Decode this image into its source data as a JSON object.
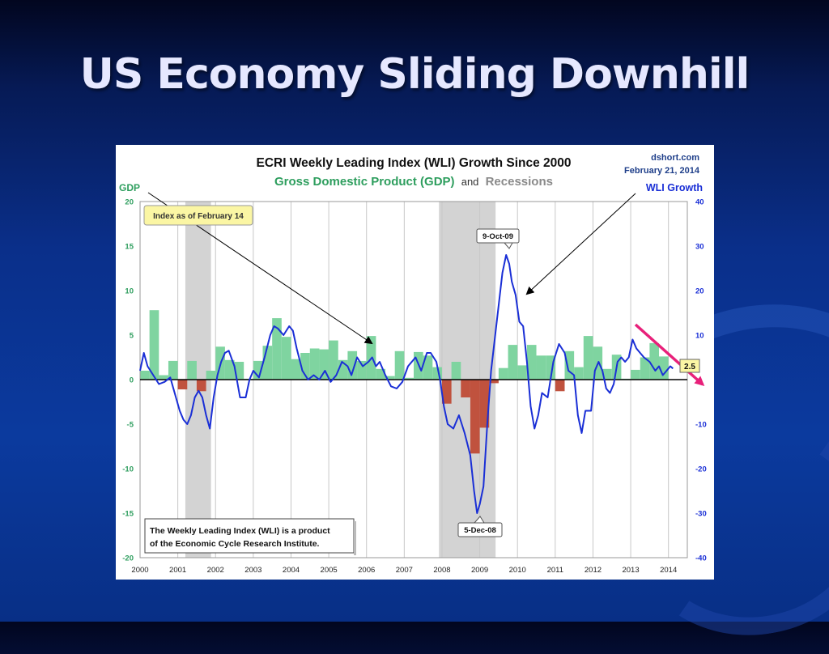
{
  "slide": {
    "title": "US Economy Sliding Downhill"
  },
  "chart_data": {
    "type": "bar",
    "title": "ECRI Weekly Leading Index (WLI) Growth Since 2000",
    "subtitle_gdp": "Gross Domestic Product (GDP)",
    "subtitle_and": "and",
    "subtitle_rec": "Recessions",
    "source": "dshort.com",
    "date": "February 21, 2014",
    "colors": {
      "gdp_pos": "#7fd4a0",
      "gdp_neg": "#c0523e",
      "wli": "#1a2fd6",
      "recession": "#d3d3d3",
      "gdp_label": "#2e9e5e",
      "wli_label": "#1a2fd6",
      "arrow": "#e8207a"
    },
    "x_years": [
      2000,
      2001,
      2002,
      2003,
      2004,
      2005,
      2006,
      2007,
      2008,
      2009,
      2010,
      2011,
      2012,
      2013,
      2014
    ],
    "left_axis": {
      "label": "GDP",
      "ylim": [
        -20,
        20
      ],
      "ticks": [
        20,
        15,
        10,
        5,
        0,
        -5,
        -10,
        -15,
        -20
      ]
    },
    "right_axis": {
      "label": "WLI Growth",
      "ylim": [
        -40,
        40
      ],
      "ticks": [
        40,
        30,
        20,
        10,
        -10,
        -20,
        -30,
        -40
      ]
    },
    "recessions": [
      {
        "start": 2001.2,
        "end": 2001.88
      },
      {
        "start": 2007.92,
        "end": 2009.42
      }
    ],
    "gdp": [
      {
        "start": 2000.0,
        "value": 1.0
      },
      {
        "start": 2000.25,
        "value": 7.8
      },
      {
        "start": 2000.5,
        "value": 0.5
      },
      {
        "start": 2000.75,
        "value": 2.1
      },
      {
        "start": 2001.0,
        "value": -1.1
      },
      {
        "start": 2001.25,
        "value": 2.1
      },
      {
        "start": 2001.5,
        "value": -1.3
      },
      {
        "start": 2001.75,
        "value": 1.0
      },
      {
        "start": 2002.0,
        "value": 3.7
      },
      {
        "start": 2002.25,
        "value": 2.2
      },
      {
        "start": 2002.5,
        "value": 2.0
      },
      {
        "start": 2002.75,
        "value": 0.1
      },
      {
        "start": 2003.0,
        "value": 2.1
      },
      {
        "start": 2003.25,
        "value": 3.8
      },
      {
        "start": 2003.5,
        "value": 6.9
      },
      {
        "start": 2003.75,
        "value": 4.8
      },
      {
        "start": 2004.0,
        "value": 2.3
      },
      {
        "start": 2004.25,
        "value": 3.0
      },
      {
        "start": 2004.5,
        "value": 3.5
      },
      {
        "start": 2004.75,
        "value": 3.4
      },
      {
        "start": 2005.0,
        "value": 4.4
      },
      {
        "start": 2005.25,
        "value": 2.2
      },
      {
        "start": 2005.5,
        "value": 3.2
      },
      {
        "start": 2005.75,
        "value": 2.1
      },
      {
        "start": 2006.0,
        "value": 4.9
      },
      {
        "start": 2006.25,
        "value": 1.2
      },
      {
        "start": 2006.5,
        "value": 0.4
      },
      {
        "start": 2006.75,
        "value": 3.2
      },
      {
        "start": 2007.0,
        "value": 0.2
      },
      {
        "start": 2007.25,
        "value": 3.1
      },
      {
        "start": 2007.5,
        "value": 2.7
      },
      {
        "start": 2007.75,
        "value": 1.4
      },
      {
        "start": 2008.0,
        "value": -2.7
      },
      {
        "start": 2008.25,
        "value": 2.0
      },
      {
        "start": 2008.5,
        "value": -2.0
      },
      {
        "start": 2008.75,
        "value": -8.3
      },
      {
        "start": 2009.0,
        "value": -5.4
      },
      {
        "start": 2009.25,
        "value": -0.4
      },
      {
        "start": 2009.5,
        "value": 1.3
      },
      {
        "start": 2009.75,
        "value": 3.9
      },
      {
        "start": 2010.0,
        "value": 1.6
      },
      {
        "start": 2010.25,
        "value": 3.9
      },
      {
        "start": 2010.5,
        "value": 2.7
      },
      {
        "start": 2010.75,
        "value": 2.7
      },
      {
        "start": 2011.0,
        "value": -1.3
      },
      {
        "start": 2011.25,
        "value": 3.2
      },
      {
        "start": 2011.5,
        "value": 1.4
      },
      {
        "start": 2011.75,
        "value": 4.9
      },
      {
        "start": 2012.0,
        "value": 3.7
      },
      {
        "start": 2012.25,
        "value": 1.2
      },
      {
        "start": 2012.5,
        "value": 2.8
      },
      {
        "start": 2012.75,
        "value": 0.1
      },
      {
        "start": 2013.0,
        "value": 1.1
      },
      {
        "start": 2013.25,
        "value": 2.5
      },
      {
        "start": 2013.5,
        "value": 4.1
      },
      {
        "start": 2013.75,
        "value": 2.6
      }
    ],
    "wli": {
      "x": [
        2000.0,
        2000.1,
        2000.2,
        2000.35,
        2000.5,
        2000.65,
        2000.8,
        2000.95,
        2001.05,
        2001.15,
        2001.25,
        2001.35,
        2001.45,
        2001.55,
        2001.65,
        2001.75,
        2001.85,
        2001.95,
        2002.05,
        2002.15,
        2002.25,
        2002.35,
        2002.5,
        2002.65,
        2002.8,
        2002.9,
        2003.0,
        2003.15,
        2003.3,
        2003.45,
        2003.55,
        2003.65,
        2003.8,
        2003.95,
        2004.05,
        2004.15,
        2004.3,
        2004.45,
        2004.6,
        2004.75,
        2004.9,
        2005.05,
        2005.2,
        2005.35,
        2005.5,
        2005.6,
        2005.75,
        2005.9,
        2006.05,
        2006.15,
        2006.25,
        2006.35,
        2006.5,
        2006.65,
        2006.8,
        2006.95,
        2007.1,
        2007.3,
        2007.45,
        2007.6,
        2007.7,
        2007.85,
        2007.95,
        2008.05,
        2008.15,
        2008.3,
        2008.45,
        2008.6,
        2008.75,
        2008.85,
        2008.93,
        2009.0,
        2009.1,
        2009.2,
        2009.3,
        2009.45,
        2009.6,
        2009.7,
        2009.78,
        2009.85,
        2009.95,
        2010.05,
        2010.15,
        2010.25,
        2010.35,
        2010.45,
        2010.55,
        2010.65,
        2010.8,
        2010.95,
        2011.1,
        2011.25,
        2011.35,
        2011.5,
        2011.6,
        2011.7,
        2011.8,
        2011.95,
        2012.05,
        2012.15,
        2012.25,
        2012.35,
        2012.45,
        2012.55,
        2012.65,
        2012.75,
        2012.85,
        2012.95,
        2013.05,
        2013.15,
        2013.25,
        2013.35,
        2013.5,
        2013.65,
        2013.75,
        2013.85,
        2013.95,
        2014.05,
        2014.12
      ],
      "y": [
        2.0,
        6.0,
        3.0,
        1.0,
        -1.0,
        -0.5,
        0.5,
        -4.0,
        -7.0,
        -9.0,
        -10.0,
        -8.0,
        -4.0,
        -2.5,
        -4.0,
        -8.0,
        -11.0,
        -4.0,
        1.0,
        4.0,
        6.0,
        6.5,
        3.0,
        -4.0,
        -4.0,
        0.0,
        2.0,
        0.5,
        5.0,
        10.0,
        12.0,
        11.5,
        10.0,
        12.0,
        11.0,
        7.0,
        2.0,
        0.0,
        1.0,
        0.0,
        2.0,
        -0.5,
        1.0,
        4.0,
        3.0,
        1.0,
        5.0,
        3.0,
        4.0,
        5.0,
        3.0,
        4.0,
        1.0,
        -1.5,
        -2.0,
        -0.5,
        3.0,
        5.0,
        2.0,
        6.0,
        6.0,
        4.0,
        0.0,
        -6.0,
        -10.0,
        -11.0,
        -8.0,
        -12.0,
        -17.0,
        -25.0,
        -30.0,
        -28.0,
        -24.0,
        -10.0,
        2.0,
        13.0,
        24.0,
        28.0,
        26.0,
        22.0,
        19.0,
        13.0,
        12.0,
        4.0,
        -6.0,
        -11.0,
        -8.0,
        -3.0,
        -4.0,
        4.0,
        8.0,
        6.0,
        2.0,
        1.0,
        -8.0,
        -12.0,
        -7.0,
        -7.0,
        2.0,
        4.0,
        2.0,
        -2.0,
        -3.0,
        -1.0,
        4.0,
        5.0,
        4.0,
        5.0,
        9.0,
        7.0,
        6.0,
        5.0,
        4.0,
        2.0,
        3.0,
        1.0,
        2.0,
        3.0,
        2.5
      ]
    },
    "annotations": {
      "index_date": "Index as of February 14",
      "peak": "9-Oct-09",
      "trough": "5-Dec-08",
      "current": "2.5",
      "note_line1": "The Weekly Leading Index (WLI) is a product",
      "note_line2": "of the Economic Cycle Research Institute."
    }
  }
}
